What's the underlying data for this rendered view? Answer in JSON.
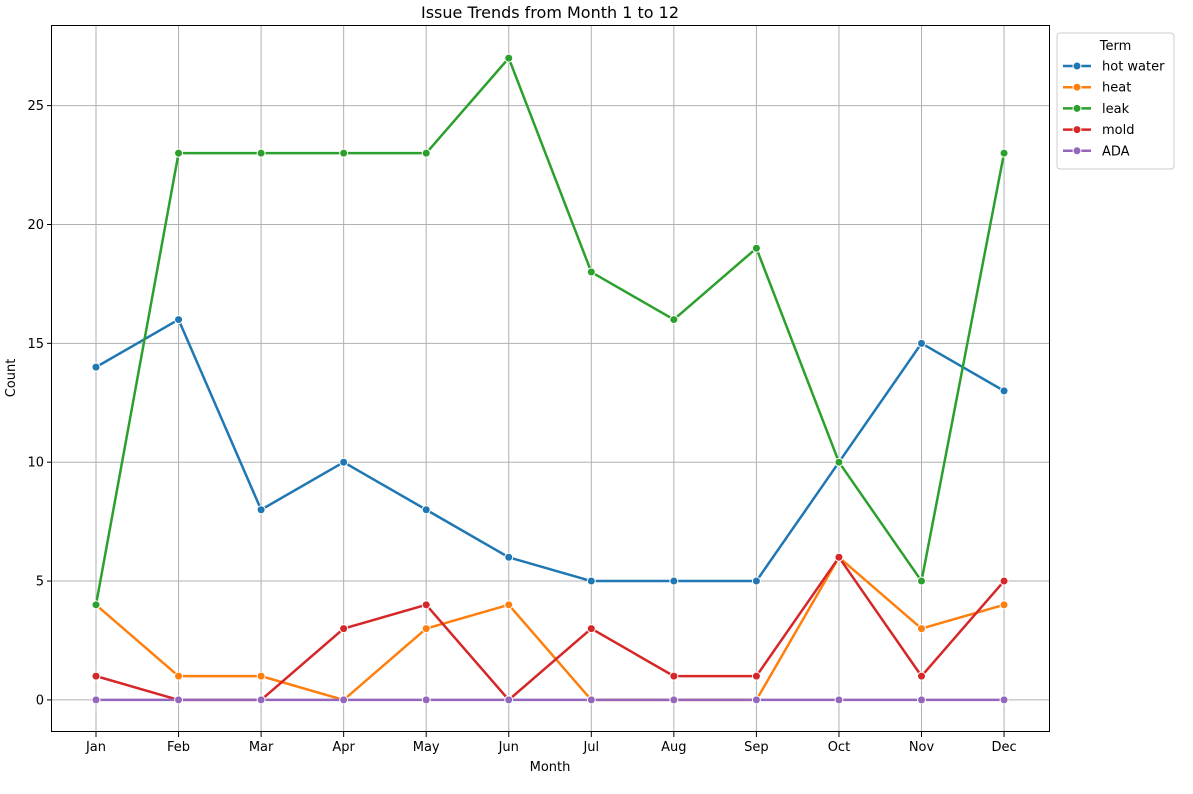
{
  "chart_data": {
    "type": "line",
    "title": "Issue Trends from Month 1 to 12",
    "xlabel": "Month",
    "ylabel": "Count",
    "categories": [
      "Jan",
      "Feb",
      "Mar",
      "Apr",
      "May",
      "Jun",
      "Jul",
      "Aug",
      "Sep",
      "Oct",
      "Nov",
      "Dec"
    ],
    "ylim": [
      -1.35,
      28.35
    ],
    "yticks": [
      0,
      5,
      10,
      15,
      20,
      25
    ],
    "grid": true,
    "legend": {
      "title": "Term",
      "placement": "outside-top-right"
    },
    "series": [
      {
        "name": "hot water",
        "color": "#1f77b4",
        "values": [
          14,
          16,
          8,
          10,
          8,
          6,
          5,
          5,
          5,
          10,
          15,
          13
        ]
      },
      {
        "name": "heat",
        "color": "#ff7f0e",
        "values": [
          4,
          1,
          1,
          0,
          3,
          4,
          0,
          0,
          0,
          6,
          3,
          4
        ]
      },
      {
        "name": "leak",
        "color": "#2ca02c",
        "values": [
          4,
          23,
          23,
          23,
          23,
          27,
          18,
          16,
          19,
          10,
          5,
          23
        ]
      },
      {
        "name": "mold",
        "color": "#d62728",
        "values": [
          1,
          0,
          0,
          3,
          4,
          0,
          3,
          1,
          1,
          6,
          1,
          5
        ]
      },
      {
        "name": "ADA",
        "color": "#9467bd",
        "values": [
          0,
          0,
          0,
          0,
          0,
          0,
          0,
          0,
          0,
          0,
          0,
          0
        ]
      }
    ]
  }
}
